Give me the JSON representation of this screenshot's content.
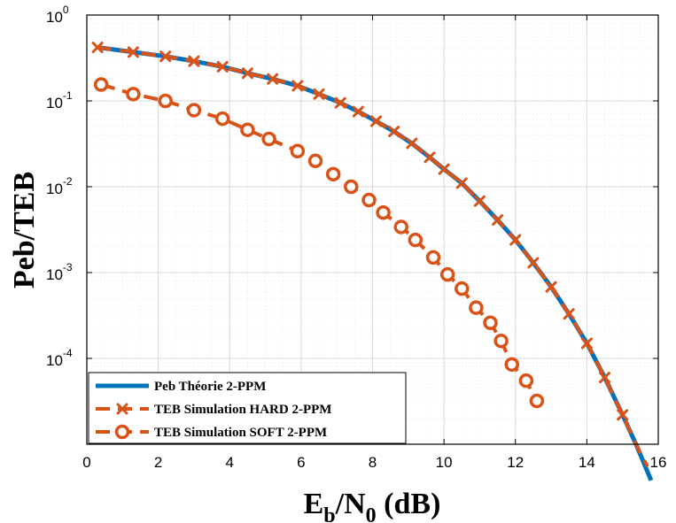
{
  "chart_data": {
    "type": "line",
    "title": "",
    "xlabel": {
      "main": "E",
      "sub1": "b",
      "sep": "/N",
      "sub2": "0",
      "unit": " (dB)"
    },
    "ylabel": "Peb/TEB",
    "xlim": [
      0,
      16
    ],
    "ylim": [
      1e-05,
      1
    ],
    "yscale": "log",
    "xticks": [
      0,
      2,
      4,
      6,
      8,
      10,
      12,
      14,
      16
    ],
    "yticks": [
      {
        "value": 1,
        "base": "10",
        "exp": "0"
      },
      {
        "value": 0.1,
        "base": "10",
        "exp": "-1"
      },
      {
        "value": 0.01,
        "base": "10",
        "exp": "-2"
      },
      {
        "value": 0.001,
        "base": "10",
        "exp": "-3"
      },
      {
        "value": 0.0001,
        "base": "10",
        "exp": "-4"
      }
    ],
    "grid": true,
    "legend_position": "bottom-left",
    "series": [
      {
        "name": "Peb Théorie 2-PPM",
        "color": "#0072BD",
        "style": "solid",
        "marker": "none",
        "x": [
          0.3,
          1.3,
          2.2,
          3.0,
          3.8,
          4.5,
          5.2,
          5.9,
          6.5,
          7.1,
          7.6,
          8.1,
          8.6,
          9.1,
          9.6,
          10.0,
          10.5,
          11.0,
          11.5,
          12.0,
          12.5,
          13.0,
          13.5,
          14.0,
          14.5,
          15.0,
          15.4,
          15.8
        ],
        "y": [
          0.42,
          0.37,
          0.33,
          0.29,
          0.25,
          0.21,
          0.18,
          0.15,
          0.12,
          0.095,
          0.075,
          0.058,
          0.044,
          0.032,
          0.022,
          0.016,
          0.011,
          0.0068,
          0.0041,
          0.0024,
          0.0013,
          0.00068,
          0.00033,
          0.00015,
          6e-05,
          2.2e-05,
          9.5e-06,
          3.8e-06
        ]
      },
      {
        "name": "TEB Simulation HARD 2-PPM",
        "color": "#D95319",
        "style": "dashed",
        "marker": "x",
        "x": [
          0.3,
          1.3,
          2.2,
          3.0,
          3.8,
          4.5,
          5.2,
          5.9,
          6.5,
          7.1,
          7.6,
          8.1,
          8.6,
          9.1,
          9.6,
          10.0,
          10.5,
          11.0,
          11.5,
          12.0,
          12.5,
          13.0,
          13.5,
          14.0,
          14.5,
          15.0,
          15.4,
          15.7
        ],
        "y": [
          0.42,
          0.37,
          0.33,
          0.29,
          0.25,
          0.21,
          0.18,
          0.15,
          0.12,
          0.095,
          0.075,
          0.058,
          0.044,
          0.032,
          0.022,
          0.016,
          0.011,
          0.0068,
          0.0041,
          0.0024,
          0.0013,
          0.00068,
          0.00033,
          0.00015,
          6e-05,
          2.2e-05,
          9.5e-06,
          5.5e-06
        ]
      },
      {
        "name": "TEB Simulation SOFT 2-PPM",
        "color": "#D95319",
        "style": "dashed",
        "marker": "o",
        "x": [
          0.4,
          1.3,
          2.2,
          3.0,
          3.8,
          4.5,
          5.1,
          5.9,
          6.4,
          6.9,
          7.4,
          7.9,
          8.3,
          8.8,
          9.2,
          9.7,
          10.1,
          10.5,
          10.9,
          11.3,
          11.6,
          11.9,
          12.3,
          12.6
        ],
        "y": [
          0.155,
          0.12,
          0.1,
          0.078,
          0.062,
          0.046,
          0.036,
          0.026,
          0.02,
          0.014,
          0.01,
          0.007,
          0.005,
          0.0034,
          0.0024,
          0.0015,
          0.00095,
          0.00065,
          0.00039,
          0.00026,
          0.00016,
          8.5e-05,
          5.5e-05,
          3.2e-05
        ]
      }
    ]
  }
}
